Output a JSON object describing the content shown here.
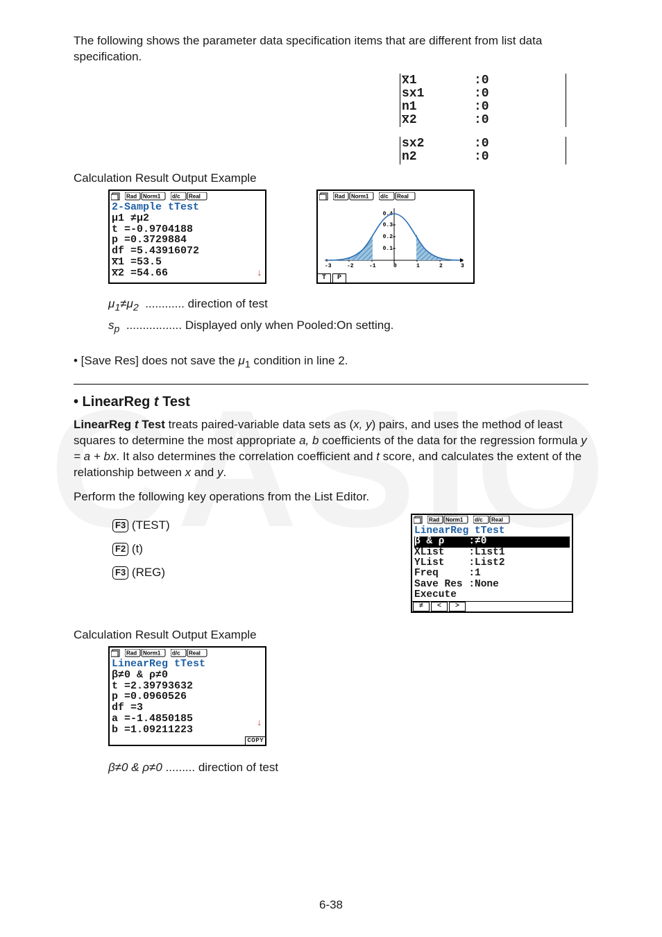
{
  "intro": "The following shows the parameter data specification items that are different from list data specification.",
  "param_block1": {
    "rows": [
      {
        "label": "x̄1",
        "value": ":0"
      },
      {
        "label": "sx1",
        "value": ":0"
      },
      {
        "label": "n1",
        "value": ":0"
      },
      {
        "label": "x̄2",
        "value": ":0"
      }
    ]
  },
  "param_block2": {
    "rows": [
      {
        "label": "sx2",
        "value": ":0"
      },
      {
        "label": "n2",
        "value": ":0"
      }
    ]
  },
  "calc_result_label": "Calculation Result Output Example",
  "status_icons": [
    "Rad",
    "Norm1",
    "d/c",
    "Real"
  ],
  "screen1": {
    "title": "2-Sample tTest",
    "lines": [
      "μ1   ≠μ2",
      "t    =-0.9704188",
      "p    =0.3729884",
      "df   =5.43916072",
      "x̄1   =53.5",
      "x̄2   =54.66"
    ]
  },
  "graph_tabs": [
    "T",
    "P"
  ],
  "bell_curve": {
    "xlim": [
      -3,
      3
    ],
    "ylim": [
      0,
      0.4
    ],
    "yticks": [
      0.1,
      0.2,
      0.3,
      0.4
    ],
    "xticks": [
      -3,
      -2,
      -1,
      0,
      1,
      2,
      3
    ],
    "fill_color": "#6fa6c9",
    "hatch_color": "#2a6fb5",
    "axis_color": "#000000",
    "label_fontsize": 7
  },
  "defs": [
    {
      "sym": "μ1≠μ2",
      "dots": "............",
      "text": "direction of test"
    },
    {
      "sym": "sₚ",
      "dots": ".................",
      "text": "Displayed only when Pooled:On setting."
    }
  ],
  "note": "• [Save Res] does not save the μ1 condition in line 2.",
  "sec_title_pre": "• LinearReg ",
  "sec_title_it": "t",
  "sec_title_post": " Test",
  "body1_a": "LinearReg ",
  "body1_b_it": "t",
  "body1_c": " Test",
  "body1_rest": " treats paired-variable data sets as (",
  "body1_xy": "x, y",
  "body1_rest2": ") pairs, and uses the method of least squares to determine the most appropriate ",
  "body1_ab": "a, b",
  "body1_rest3": " coefficients of the data for the regression formula ",
  "body1_formula": "y = a + bx",
  "body1_rest4": ". It also determines the correlation coefficient and ",
  "body1_tscore": "t",
  "body1_rest5": " score, and calculates the extent of the relationship between ",
  "body1_x": "x",
  "body1_and": " and ",
  "body1_y": "y",
  "body1_end": ".",
  "keyop_instr": "Perform the following key operations from the List Editor.",
  "keyops": [
    {
      "key": "F3",
      "label": "(TEST)"
    },
    {
      "key": "F2",
      "label": "(t)"
    },
    {
      "key": "F3",
      "label": "(REG)"
    }
  ],
  "setup_screen": {
    "title": "LinearReg tTest",
    "hl_left": "β & ρ",
    "hl_right": ":≠0",
    "rows": [
      {
        "l": "XList",
        "r": ":List1"
      },
      {
        "l": "YList",
        "r": ":List2"
      },
      {
        "l": "Freq",
        "r": ":1"
      },
      {
        "l": "Save Res",
        "r": ":None"
      },
      {
        "l": "Execute",
        "r": ""
      }
    ],
    "softkeys": [
      "≠",
      "<",
      ">"
    ]
  },
  "screen3": {
    "title": "LinearReg tTest",
    "lines": [
      " β≠0 & ρ≠0",
      " t  =2.39793632",
      " p  =0.0960526",
      " df =3",
      " a  =-1.4850185",
      " b  =1.09211223"
    ],
    "footer": "COPY"
  },
  "def2": {
    "sym": "β≠0 & ρ≠0",
    "dots": ".........",
    "text": "direction of test"
  },
  "pagenum": "6-38",
  "watermark": "CASIO"
}
